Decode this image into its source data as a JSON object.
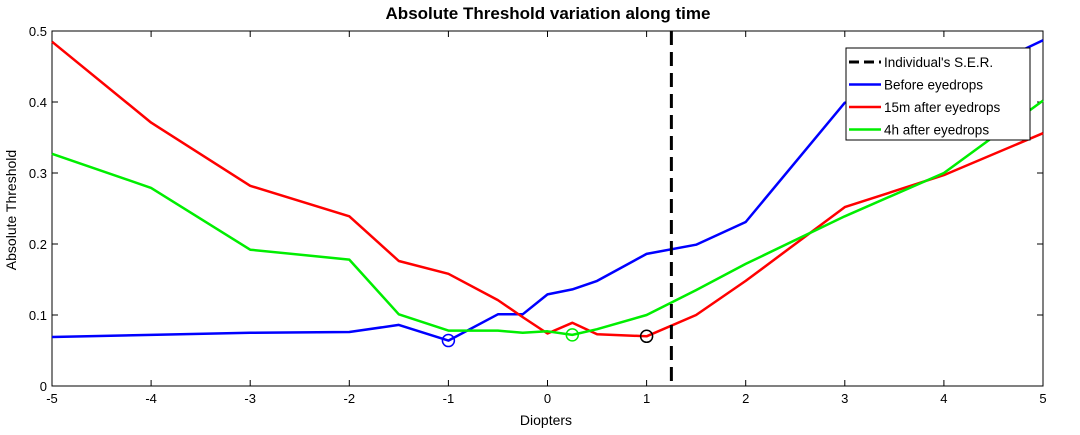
{
  "chart_data": {
    "type": "line",
    "title": "Absolute Threshold variation along time",
    "xlabel": "Diopters",
    "ylabel": "Absolute Threshold",
    "xlim": [
      -5,
      5
    ],
    "ylim": [
      0,
      0.5
    ],
    "xticks": [
      -5,
      -4,
      -3,
      -2,
      -1,
      0,
      1,
      2,
      3,
      4,
      5
    ],
    "yticks": [
      0,
      0.1,
      0.2,
      0.3,
      0.4,
      0.5
    ],
    "xtick_labels": [
      "-5",
      "-4",
      "-3",
      "-2",
      "-1",
      "0",
      "1",
      "2",
      "3",
      "4",
      "5"
    ],
    "ytick_labels": [
      "0",
      "0.1",
      "0.2",
      "0.3",
      "0.4",
      "0.5"
    ],
    "grid": false,
    "legend_position": "top-right",
    "vline": {
      "name": "Individual's S.E.R.",
      "x": 1.25,
      "color": "#000000",
      "style": "dashed"
    },
    "series": [
      {
        "name": "Before eyedrops",
        "color": "#0000ff",
        "x": [
          -5,
          -4,
          -3,
          -2,
          -1.5,
          -1,
          -0.5,
          -0.25,
          0,
          0.25,
          0.5,
          1,
          1.5,
          2,
          3,
          4,
          5
        ],
        "y": [
          0.069,
          0.072,
          0.075,
          0.076,
          0.086,
          0.064,
          0.101,
          0.101,
          0.129,
          0.136,
          0.148,
          0.186,
          0.199,
          0.231,
          0.399,
          0.42,
          0.487
        ]
      },
      {
        "name": "15m after eyedrops",
        "color": "#ff0000",
        "x": [
          -5,
          -4,
          -3,
          -2,
          -1.5,
          -1,
          -0.5,
          -0.25,
          0,
          0.25,
          0.5,
          1,
          1.5,
          2,
          3,
          4,
          5
        ],
        "y": [
          0.485,
          0.371,
          0.282,
          0.239,
          0.176,
          0.158,
          0.121,
          0.097,
          0.074,
          0.089,
          0.073,
          0.07,
          0.1,
          0.148,
          0.252,
          0.297,
          0.356
        ]
      },
      {
        "name": "4h after eyedrops",
        "color": "#00ee00",
        "x": [
          -5,
          -4,
          -3,
          -2,
          -1.5,
          -1,
          -0.5,
          -0.25,
          0,
          0.25,
          0.5,
          1,
          1.5,
          2,
          3,
          4,
          5
        ],
        "y": [
          0.327,
          0.279,
          0.192,
          0.178,
          0.101,
          0.078,
          0.078,
          0.075,
          0.077,
          0.072,
          0.08,
          0.1,
          0.135,
          0.172,
          0.239,
          0.3,
          0.402
        ]
      }
    ],
    "markers": [
      {
        "series": "Before eyedrops",
        "x": -1,
        "y": 0.064,
        "color": "#0000ff",
        "shape": "circle"
      },
      {
        "series": "4h after eyedrops",
        "x": 0.25,
        "y": 0.072,
        "color": "#00ee00",
        "shape": "circle"
      },
      {
        "series": "15m after eyedrops",
        "x": 1,
        "y": 0.07,
        "color": "#000000",
        "shape": "circle"
      }
    ]
  }
}
